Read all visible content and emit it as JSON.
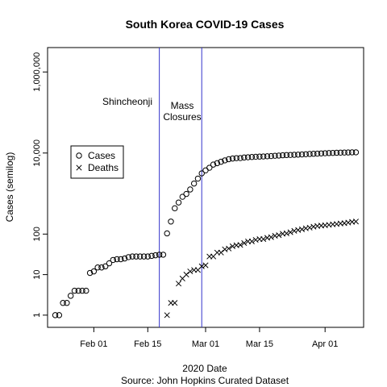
{
  "chart_data": {
    "type": "scatter",
    "title": "South Korea COVID-19 Cases",
    "xlabel": "2020 Date",
    "ylabel": "Cases (semilog)",
    "source": "Source: John Hopkins Curated Dataset",
    "y_scale": "log",
    "xlim": [
      "2020-01-20",
      "2020-04-11"
    ],
    "ylim": [
      0.5,
      4000000
    ],
    "x_ticks": [
      {
        "date": "2020-02-01",
        "label": "Feb 01"
      },
      {
        "date": "2020-02-15",
        "label": "Feb 15"
      },
      {
        "date": "2020-03-01",
        "label": "Mar 01"
      },
      {
        "date": "2020-03-15",
        "label": "Mar 15"
      },
      {
        "date": "2020-04-01",
        "label": "Apr 01"
      }
    ],
    "y_ticks": [
      {
        "value": 1,
        "label": "1"
      },
      {
        "value": 10,
        "label": "10"
      },
      {
        "value": 100,
        "label": "100"
      },
      {
        "value": 10000,
        "label": "10,000"
      },
      {
        "value": 1000000,
        "label": "1,000,000"
      }
    ],
    "grid": false,
    "legend": "left",
    "annotations": [
      {
        "date": "2020-02-18",
        "color": "#3333cc",
        "lines": [
          "Shincheonji"
        ]
      },
      {
        "date": "2020-02-29",
        "color": "#3333cc",
        "lines": [
          "Mass",
          "Closures"
        ]
      }
    ],
    "series": [
      {
        "name": "Cases",
        "marker": "circle",
        "points": [
          [
            "2020-01-22",
            1
          ],
          [
            "2020-01-23",
            1
          ],
          [
            "2020-01-24",
            2
          ],
          [
            "2020-01-25",
            2
          ],
          [
            "2020-01-26",
            3
          ],
          [
            "2020-01-27",
            4
          ],
          [
            "2020-01-28",
            4
          ],
          [
            "2020-01-29",
            4
          ],
          [
            "2020-01-30",
            4
          ],
          [
            "2020-01-31",
            11
          ],
          [
            "2020-02-01",
            12
          ],
          [
            "2020-02-02",
            15
          ],
          [
            "2020-02-03",
            15
          ],
          [
            "2020-02-04",
            16
          ],
          [
            "2020-02-05",
            19
          ],
          [
            "2020-02-06",
            23
          ],
          [
            "2020-02-07",
            24
          ],
          [
            "2020-02-08",
            24
          ],
          [
            "2020-02-09",
            25
          ],
          [
            "2020-02-10",
            27
          ],
          [
            "2020-02-11",
            28
          ],
          [
            "2020-02-12",
            28
          ],
          [
            "2020-02-13",
            28
          ],
          [
            "2020-02-14",
            28
          ],
          [
            "2020-02-15",
            28
          ],
          [
            "2020-02-16",
            29
          ],
          [
            "2020-02-17",
            30
          ],
          [
            "2020-02-18",
            31
          ],
          [
            "2020-02-19",
            31
          ],
          [
            "2020-02-20",
            104
          ],
          [
            "2020-02-21",
            204
          ],
          [
            "2020-02-22",
            433
          ],
          [
            "2020-02-23",
            602
          ],
          [
            "2020-02-24",
            833
          ],
          [
            "2020-02-25",
            977
          ],
          [
            "2020-02-26",
            1261
          ],
          [
            "2020-02-27",
            1766
          ],
          [
            "2020-02-28",
            2337
          ],
          [
            "2020-02-29",
            3150
          ],
          [
            "2020-03-01",
            3736
          ],
          [
            "2020-03-02",
            4335
          ],
          [
            "2020-03-03",
            5186
          ],
          [
            "2020-03-04",
            5621
          ],
          [
            "2020-03-05",
            6088
          ],
          [
            "2020-03-06",
            6593
          ],
          [
            "2020-03-07",
            7041
          ],
          [
            "2020-03-08",
            7314
          ],
          [
            "2020-03-09",
            7478
          ],
          [
            "2020-03-10",
            7513
          ],
          [
            "2020-03-11",
            7755
          ],
          [
            "2020-03-12",
            7869
          ],
          [
            "2020-03-13",
            7979
          ],
          [
            "2020-03-14",
            8086
          ],
          [
            "2020-03-15",
            8162
          ],
          [
            "2020-03-16",
            8236
          ],
          [
            "2020-03-17",
            8320
          ],
          [
            "2020-03-18",
            8413
          ],
          [
            "2020-03-19",
            8565
          ],
          [
            "2020-03-20",
            8652
          ],
          [
            "2020-03-21",
            8799
          ],
          [
            "2020-03-22",
            8897
          ],
          [
            "2020-03-23",
            8961
          ],
          [
            "2020-03-24",
            9037
          ],
          [
            "2020-03-25",
            9137
          ],
          [
            "2020-03-26",
            9241
          ],
          [
            "2020-03-27",
            9332
          ],
          [
            "2020-03-28",
            9478
          ],
          [
            "2020-03-29",
            9583
          ],
          [
            "2020-03-30",
            9661
          ],
          [
            "2020-03-31",
            9786
          ],
          [
            "2020-04-01",
            9887
          ],
          [
            "2020-04-02",
            9976
          ],
          [
            "2020-04-03",
            10062
          ],
          [
            "2020-04-04",
            10156
          ],
          [
            "2020-04-05",
            10237
          ],
          [
            "2020-04-06",
            10284
          ],
          [
            "2020-04-07",
            10331
          ],
          [
            "2020-04-08",
            10384
          ],
          [
            "2020-04-09",
            10423
          ]
        ]
      },
      {
        "name": "Deaths",
        "marker": "x",
        "points": [
          [
            "2020-02-20",
            1
          ],
          [
            "2020-02-21",
            2
          ],
          [
            "2020-02-22",
            2
          ],
          [
            "2020-02-23",
            6
          ],
          [
            "2020-02-24",
            8
          ],
          [
            "2020-02-25",
            10
          ],
          [
            "2020-02-26",
            12
          ],
          [
            "2020-02-27",
            13
          ],
          [
            "2020-02-28",
            13
          ],
          [
            "2020-02-29",
            16
          ],
          [
            "2020-03-01",
            17
          ],
          [
            "2020-03-02",
            28
          ],
          [
            "2020-03-03",
            28
          ],
          [
            "2020-03-04",
            35
          ],
          [
            "2020-03-05",
            35
          ],
          [
            "2020-03-06",
            42
          ],
          [
            "2020-03-07",
            44
          ],
          [
            "2020-03-08",
            50
          ],
          [
            "2020-03-09",
            53
          ],
          [
            "2020-03-10",
            54
          ],
          [
            "2020-03-11",
            60
          ],
          [
            "2020-03-12",
            66
          ],
          [
            "2020-03-13",
            66
          ],
          [
            "2020-03-14",
            72
          ],
          [
            "2020-03-15",
            75
          ],
          [
            "2020-03-16",
            75
          ],
          [
            "2020-03-17",
            81
          ],
          [
            "2020-03-18",
            84
          ],
          [
            "2020-03-19",
            91
          ],
          [
            "2020-03-20",
            94
          ],
          [
            "2020-03-21",
            102
          ],
          [
            "2020-03-22",
            104
          ],
          [
            "2020-03-23",
            111
          ],
          [
            "2020-03-24",
            120
          ],
          [
            "2020-03-25",
            126
          ],
          [
            "2020-03-26",
            131
          ],
          [
            "2020-03-27",
            139
          ],
          [
            "2020-03-28",
            144
          ],
          [
            "2020-03-29",
            152
          ],
          [
            "2020-03-30",
            158
          ],
          [
            "2020-03-31",
            162
          ],
          [
            "2020-04-01",
            165
          ],
          [
            "2020-04-02",
            169
          ],
          [
            "2020-04-03",
            174
          ],
          [
            "2020-04-04",
            177
          ],
          [
            "2020-04-05",
            183
          ],
          [
            "2020-04-06",
            186
          ],
          [
            "2020-04-07",
            192
          ],
          [
            "2020-04-08",
            200
          ],
          [
            "2020-04-09",
            204
          ]
        ]
      }
    ]
  }
}
